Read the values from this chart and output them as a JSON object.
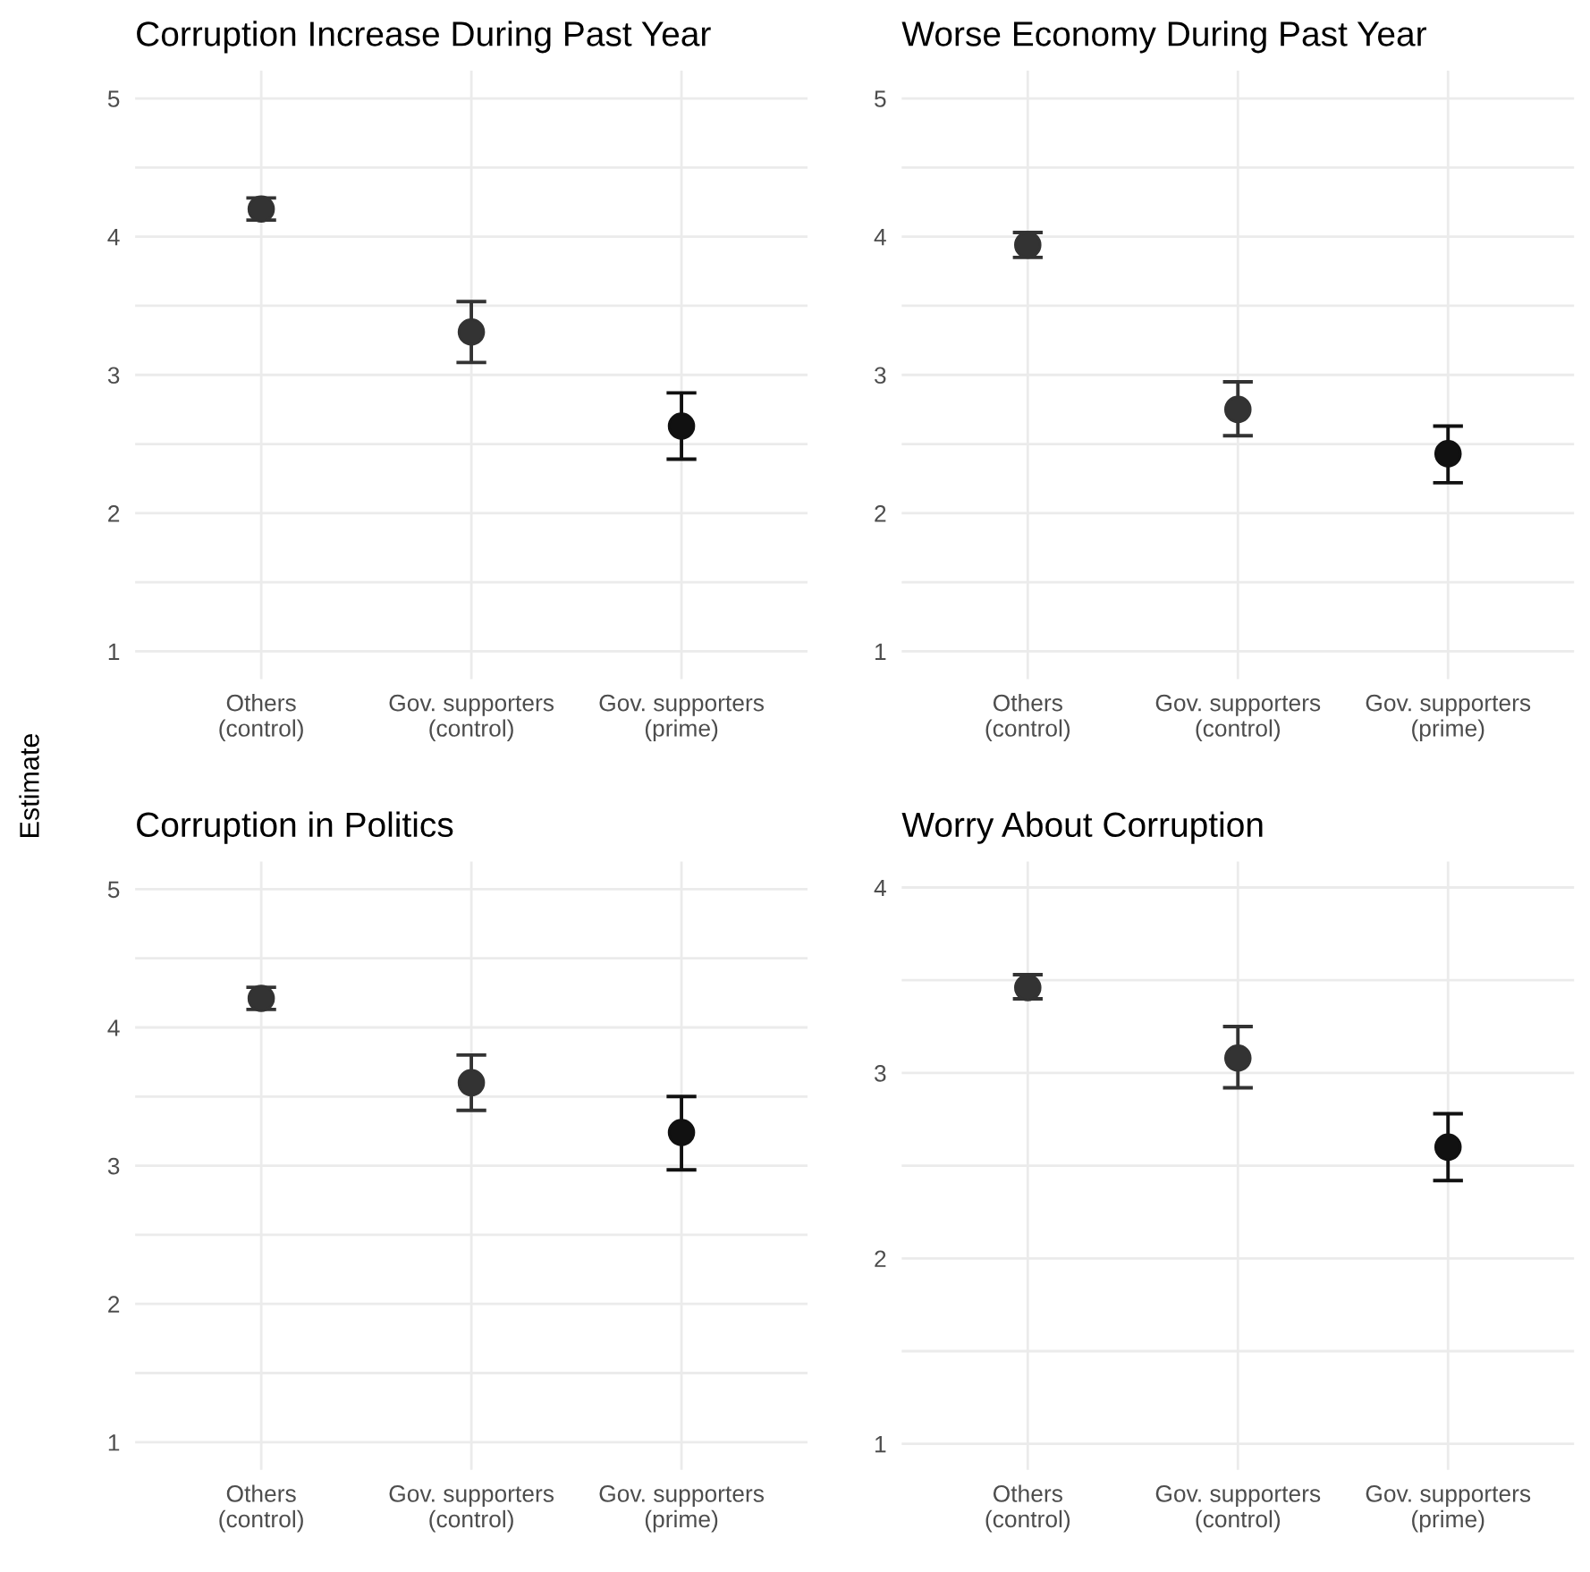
{
  "chart_data": [
    {
      "type": "scatter",
      "title": "Corruption Increase During Past Year",
      "ylabel": "Estimate",
      "categories": [
        "Others\n(control)",
        "Gov. supporters\n(control)",
        "Gov. supporters\n(prime)"
      ],
      "values": [
        4.2,
        3.31,
        2.63
      ],
      "errors": [
        [
          4.12,
          4.28
        ],
        [
          3.09,
          3.53
        ],
        [
          2.39,
          2.87
        ]
      ],
      "colors": [
        "#333333",
        "#333333",
        "#111111"
      ],
      "ylim": [
        0.8,
        5.2
      ],
      "yticks": [
        1,
        {
          "value": 1.5,
          "label": null
        },
        2,
        {
          "value": 2.5,
          "label": null
        },
        3,
        {
          "value": 3.5,
          "label": null
        },
        4,
        {
          "value": 4.5,
          "label": null
        },
        5
      ],
      "grid": true,
      "marker": "circle"
    },
    {
      "type": "scatter",
      "title": "Worse Economy During Past Year",
      "categories": [
        "Others\n(control)",
        "Gov. supporters\n(control)",
        "Gov. supporters\n(prime)"
      ],
      "values": [
        3.94,
        2.75,
        2.43
      ],
      "errors": [
        [
          3.85,
          4.03
        ],
        [
          2.56,
          2.95
        ],
        [
          2.22,
          2.63
        ]
      ],
      "colors": [
        "#333333",
        "#333333",
        "#111111"
      ],
      "ylim": [
        0.8,
        5.2
      ],
      "yticks": [
        1,
        {
          "value": 1.5,
          "label": null
        },
        2,
        {
          "value": 2.5,
          "label": null
        },
        3,
        {
          "value": 3.5,
          "label": null
        },
        4,
        {
          "value": 4.5,
          "label": null
        },
        5
      ],
      "grid": true,
      "marker": "circle"
    },
    {
      "type": "scatter",
      "title": "Corruption in Politics",
      "categories": [
        "Others\n(control)",
        "Gov. supporters\n(control)",
        "Gov. supporters\n(prime)"
      ],
      "values": [
        4.21,
        3.6,
        3.24
      ],
      "errors": [
        [
          4.13,
          4.29
        ],
        [
          3.4,
          3.8
        ],
        [
          2.97,
          3.5
        ]
      ],
      "colors": [
        "#333333",
        "#333333",
        "#111111"
      ],
      "ylim": [
        0.8,
        5.2
      ],
      "yticks": [
        1,
        {
          "value": 1.5,
          "label": null
        },
        2,
        {
          "value": 2.5,
          "label": null
        },
        3,
        {
          "value": 3.5,
          "label": null
        },
        4,
        {
          "value": 4.5,
          "label": null
        },
        5
      ],
      "grid": true,
      "marker": "circle"
    },
    {
      "type": "scatter",
      "title": "Worry About Corruption",
      "categories": [
        "Others\n(control)",
        "Gov. supporters\n(control)",
        "Gov. supporters\n(prime)"
      ],
      "values": [
        3.46,
        3.08,
        2.6
      ],
      "errors": [
        [
          3.4,
          3.53
        ],
        [
          2.92,
          3.25
        ],
        [
          2.42,
          2.78
        ]
      ],
      "colors": [
        "#333333",
        "#333333",
        "#111111"
      ],
      "ylim": [
        0.86,
        4.14
      ],
      "yticks": [
        1,
        {
          "value": 1.5,
          "label": null
        },
        2,
        {
          "value": 2.5,
          "label": null
        },
        3,
        {
          "value": 3.5,
          "label": null
        },
        4
      ],
      "grid": true,
      "marker": "circle"
    }
  ]
}
